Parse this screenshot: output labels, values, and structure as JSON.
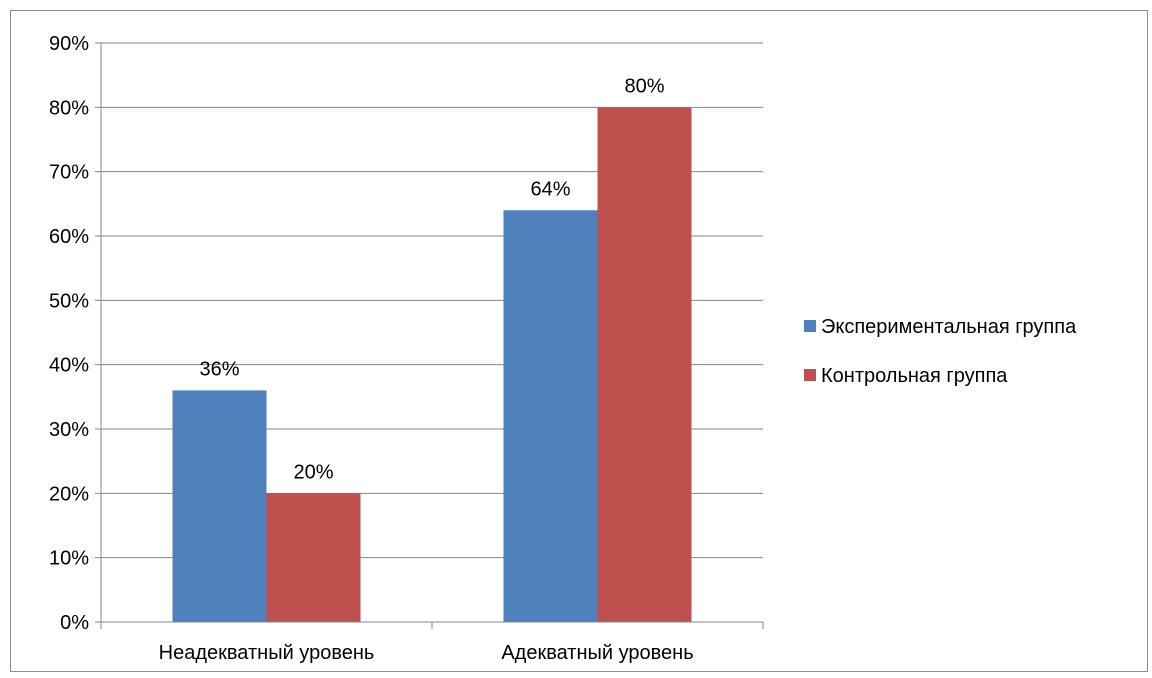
{
  "chart_data": {
    "type": "bar",
    "title": "",
    "xlabel": "",
    "ylabel": "",
    "categories": [
      "Неадекватный уровень",
      "Адекватный уровень"
    ],
    "series": [
      {
        "name": "Экспериментальная группа",
        "values": [
          36,
          64
        ],
        "color": "#4F81BD"
      },
      {
        "name": "Контрольная группа",
        "values": [
          20,
          80
        ],
        "color": "#C0504D"
      }
    ],
    "data_labels": [
      [
        "36%",
        "64%"
      ],
      [
        "20%",
        "80%"
      ]
    ],
    "ylim": [
      0,
      90
    ],
    "yticks": [
      0,
      10,
      20,
      30,
      40,
      50,
      60,
      70,
      80,
      90
    ],
    "ytick_labels": [
      "0%",
      "10%",
      "20%",
      "30%",
      "40%",
      "50%",
      "60%",
      "70%",
      "80%",
      "90%"
    ],
    "grid": true,
    "legend_position": "right"
  }
}
